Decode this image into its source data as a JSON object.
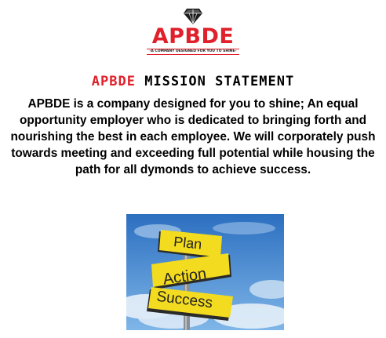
{
  "logo": {
    "icon": "diamond-icon",
    "brand": "APBDE",
    "tagline": "A COMPANY DESIGNED FOR YOU TO SHINE"
  },
  "heading": {
    "accent": "APBDE",
    "rest": " MISSION STATEMENT"
  },
  "statement": "APBDE is a company designed for you to shine; An equal opportunity employer who is dedicated to bringing forth and nourishing the best in each employee. We will corporately push towards meeting and exceeding full potential while housing the path for all dymonds to achieve success.",
  "signpost": {
    "signs": [
      "Plan",
      "Action",
      "Success"
    ]
  },
  "colors": {
    "accent": "#e0202a",
    "sign": "#f3db1f",
    "sky": "#3f86d0"
  }
}
